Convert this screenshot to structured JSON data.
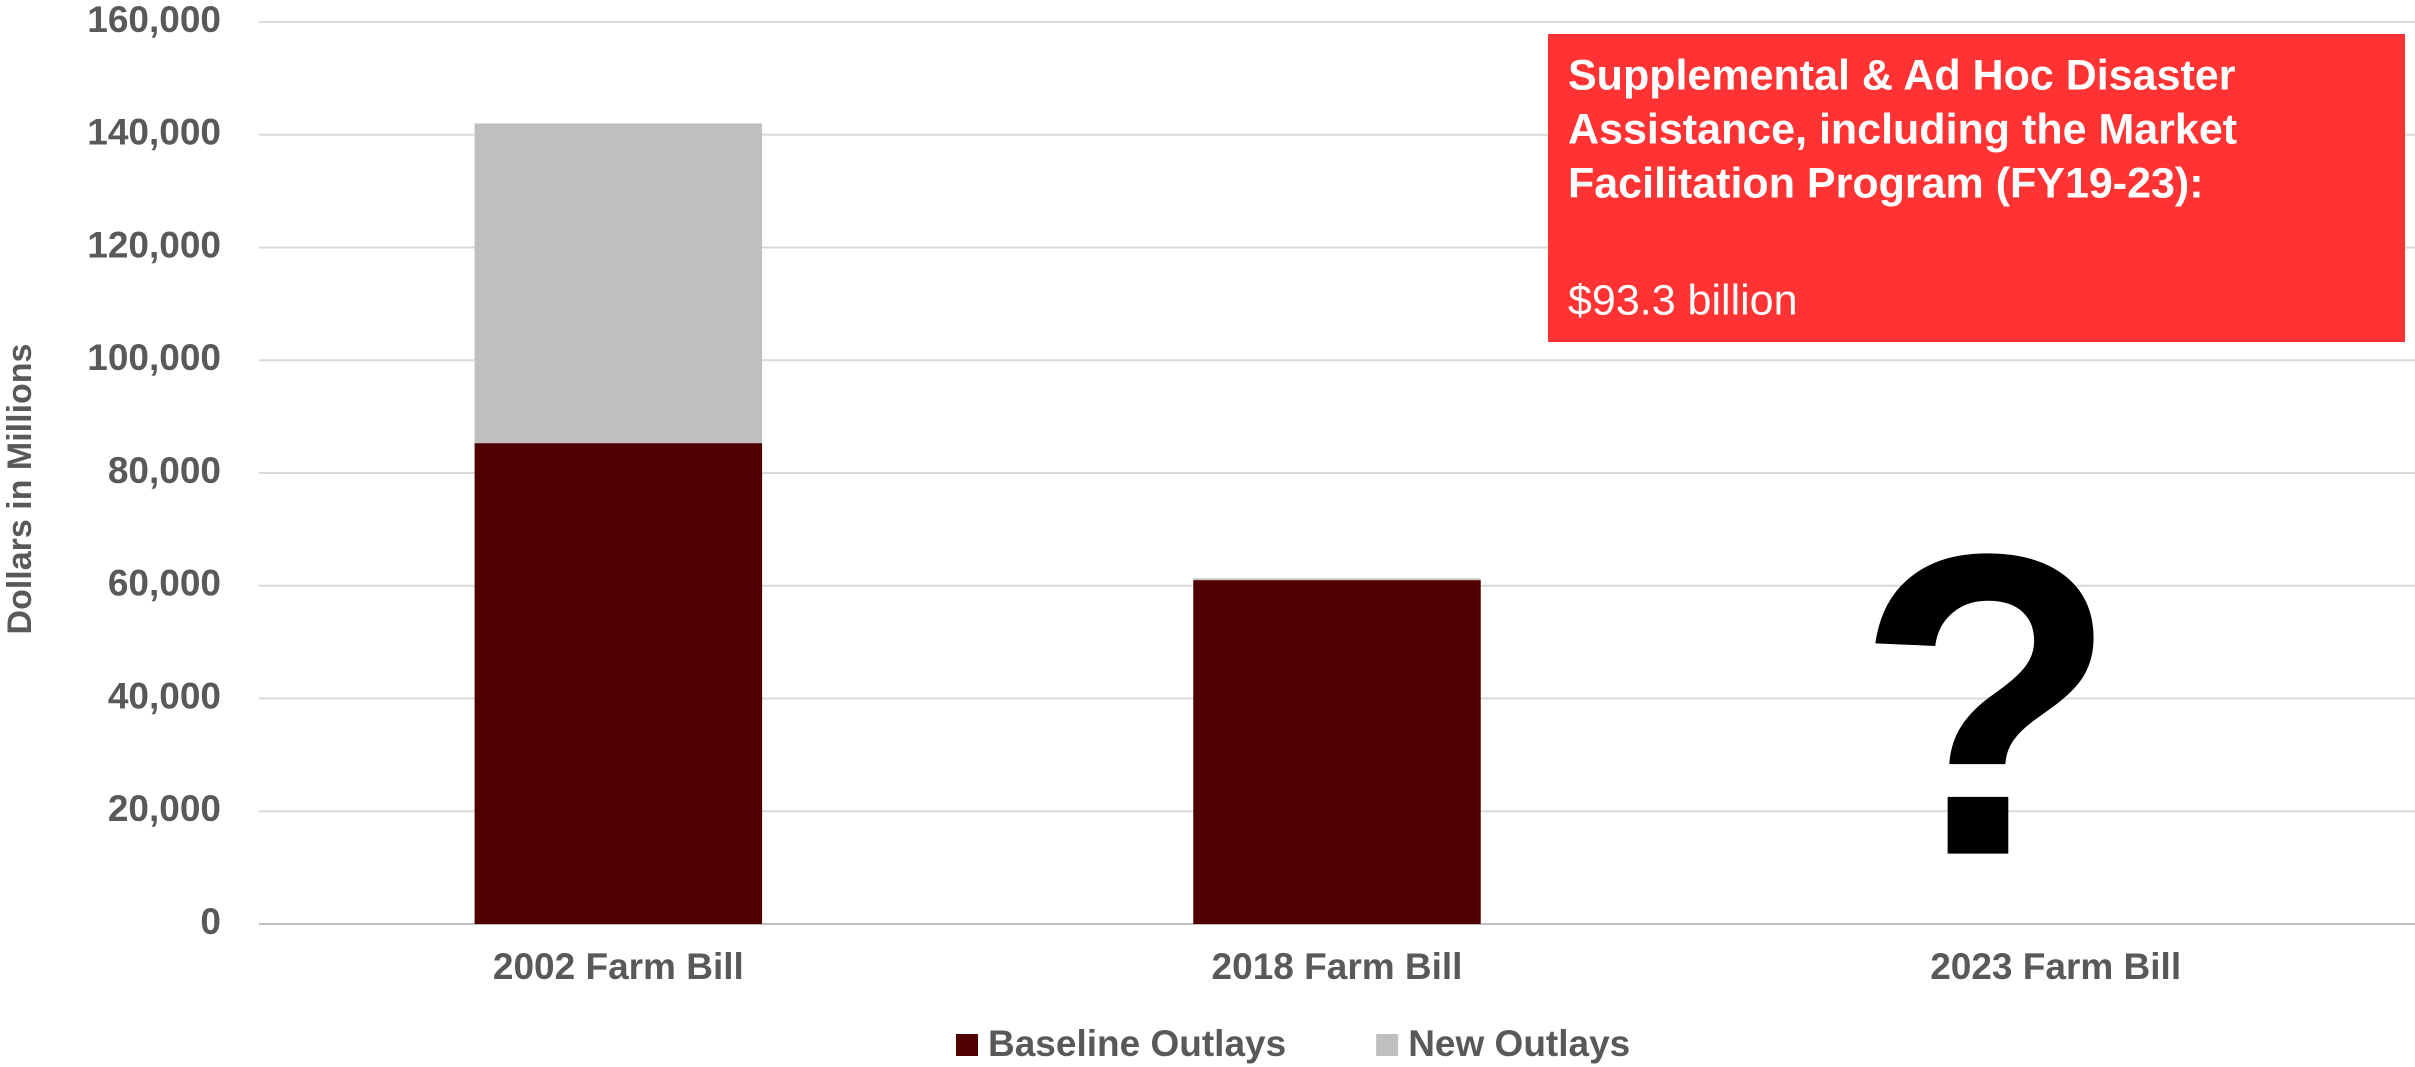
{
  "chart_data": {
    "type": "stacked_bar",
    "y_label": "Dollars in Millions",
    "categories": [
      "2002 Farm Bill",
      "2018 Farm Bill",
      "2023 Farm Bill"
    ],
    "series": [
      {
        "name": "Baseline Outlays",
        "color": "#500000",
        "values": [
          85300,
          61000,
          null
        ]
      },
      {
        "name": "New Outlays",
        "color": "#bfbfbf",
        "values": [
          56700,
          300,
          null
        ]
      }
    ],
    "ylim": [
      0,
      160000
    ],
    "yticks": [
      0,
      {
        "value": 20000,
        "label": "20,000"
      },
      {
        "value": 40000,
        "label": "40,000"
      },
      {
        "value": 60000,
        "label": "60,000"
      },
      {
        "value": 80000,
        "label": "80,000"
      },
      {
        "value": 100000,
        "label": "100,000"
      },
      {
        "value": 120000,
        "label": "120,000"
      },
      {
        "value": 140000,
        "label": "140,000"
      },
      {
        "value": 160000,
        "label": "160,000"
      }
    ],
    "grid": true,
    "legend": "bottom",
    "annotation": {
      "lines": [
        "Supplemental & Ad Hoc Disaster",
        "Assistance, including the Market",
        "Facilitation Program (FY19-23):"
      ],
      "amount": "$93.3 billion",
      "color": "#ff3333"
    },
    "question_mark": "?"
  }
}
